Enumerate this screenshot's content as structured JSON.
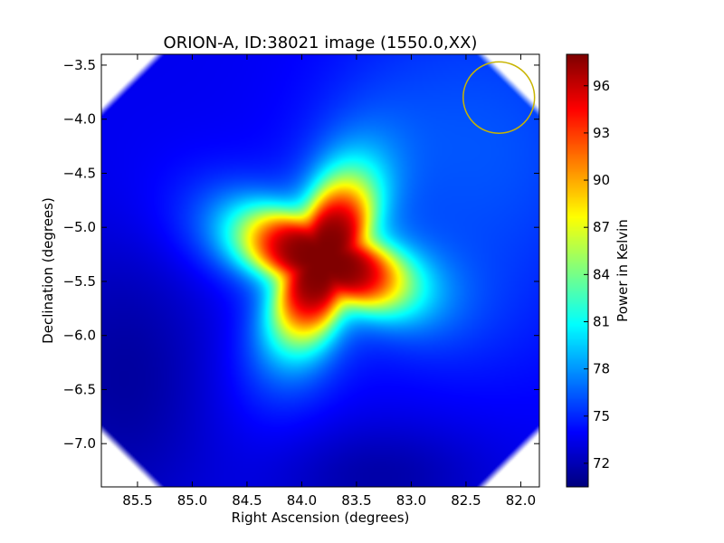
{
  "chart_data": {
    "type": "heatmap",
    "title": "ORION-A, ID:38021 image (1550.0,XX)",
    "xlabel": "Right Ascension (degrees)",
    "ylabel": "Declination (degrees)",
    "xlim": [
      85.83,
      81.83
    ],
    "ylim": [
      -7.4,
      -3.4
    ],
    "x_ticks": [
      85.5,
      85.0,
      84.5,
      84.0,
      83.5,
      83.0,
      82.5,
      82.0
    ],
    "x_tick_labels": [
      "85.5",
      "85.0",
      "84.5",
      "84.0",
      "83.5",
      "83.0",
      "82.5",
      "82.0"
    ],
    "y_ticks": [
      -3.5,
      -4.0,
      -4.5,
      -5.0,
      -5.5,
      -6.0,
      -6.5,
      -7.0
    ],
    "y_tick_labels": [
      "−3.5",
      "−4.0",
      "−4.5",
      "−5.0",
      "−5.5",
      "−6.0",
      "−6.5",
      "−7.0"
    ],
    "colorbar": {
      "label": "Power in Kelvin",
      "colormap": "jet",
      "range": [
        70.5,
        98
      ],
      "ticks": [
        72,
        75,
        78,
        81,
        84,
        87,
        90,
        93,
        96
      ],
      "tick_labels": [
        "72",
        "75",
        "78",
        "81",
        "84",
        "87",
        "90",
        "93",
        "96"
      ]
    },
    "peak": {
      "ra": 83.8,
      "dec": -5.3,
      "value": 98
    },
    "beam_circle": {
      "ra": 82.2,
      "dec": -3.8,
      "radius_deg": 0.33,
      "color": "#c8b400"
    },
    "grid": false
  }
}
